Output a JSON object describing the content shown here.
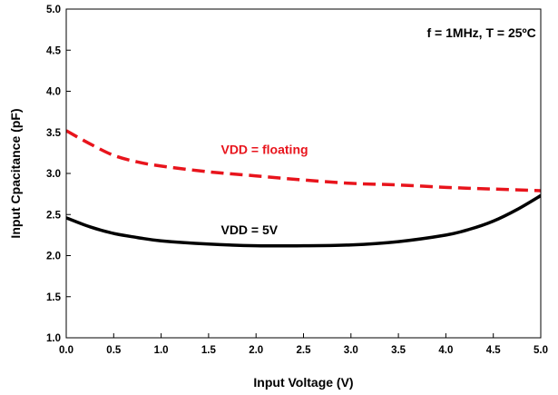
{
  "chart_data": {
    "type": "line",
    "title": "",
    "xlabel": "Input Voltage (V)",
    "ylabel": "Input Cpacitance (pF)",
    "xlim": [
      0,
      5
    ],
    "ylim": [
      1,
      5
    ],
    "x_ticks": [
      "0.0",
      "0.5",
      "1.0",
      "1.5",
      "2.0",
      "2.5",
      "3.0",
      "3.5",
      "4.0",
      "4.5",
      "5.0"
    ],
    "y_ticks": [
      "1.0",
      "1.5",
      "2.0",
      "2.5",
      "3.0",
      "3.5",
      "4.0",
      "4.5",
      "5.0"
    ],
    "grid": false,
    "annotations": [
      {
        "text": "f = 1MHz, T = 25ºC",
        "x": 4.95,
        "y": 4.66,
        "anchor": "end",
        "color": "#000000"
      },
      {
        "text": "VDD = floating",
        "x": 1.63,
        "y": 3.24,
        "anchor": "start",
        "color": "#e8141c"
      },
      {
        "text": "VDD = 5V",
        "x": 1.63,
        "y": 2.26,
        "anchor": "start",
        "color": "#000000"
      }
    ],
    "series": [
      {
        "color": "#e8141c",
        "style": "dashed",
        "x": [
          0.0,
          0.25,
          0.5,
          0.75,
          1.0,
          1.5,
          2.0,
          2.5,
          3.0,
          3.5,
          4.0,
          4.5,
          5.0
        ],
        "y": [
          3.52,
          3.36,
          3.22,
          3.14,
          3.09,
          3.02,
          2.97,
          2.92,
          2.88,
          2.86,
          2.83,
          2.81,
          2.79
        ]
      },
      {
        "color": "#000000",
        "style": "solid",
        "x": [
          0.0,
          0.25,
          0.5,
          0.75,
          1.0,
          1.5,
          2.0,
          2.5,
          3.0,
          3.5,
          4.0,
          4.25,
          4.5,
          4.75,
          5.0
        ],
        "y": [
          2.46,
          2.35,
          2.27,
          2.22,
          2.18,
          2.14,
          2.12,
          2.12,
          2.13,
          2.17,
          2.25,
          2.32,
          2.42,
          2.56,
          2.73
        ]
      }
    ]
  }
}
